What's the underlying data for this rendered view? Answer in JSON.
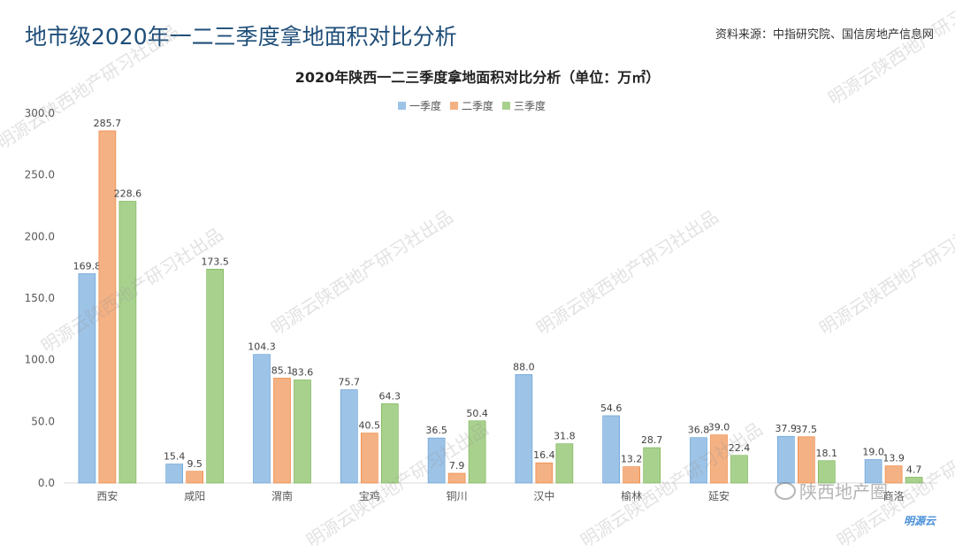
{
  "header": {
    "title": "地市级2020年一二三季度拿地面积对比分析",
    "source_label": "资料来源：",
    "source_part1": "中指研究院",
    "source_separator": "、",
    "source_part2": "国信房地产信息网"
  },
  "watermark_text": "明源云陕西地产研习社出品",
  "wechat_text": "陕西地产圈",
  "logo_text": "明源云",
  "colors": {
    "series1": "#9dc3e6",
    "series2": "#f4b183",
    "series3": "#a9d18e",
    "series1_stroke": "#5b9bd5",
    "series2_stroke": "#ed7d31",
    "series3_stroke": "#70ad47",
    "title_color": "#1f4e79"
  },
  "chart_data": {
    "type": "bar",
    "title": "2020年陕西一二三季度拿地面积对比分析（单位：万㎡）",
    "categories": [
      "西安",
      "咸阳",
      "渭南",
      "宝鸡",
      "铜川",
      "汉中",
      "榆林",
      "延安",
      "",
      "商洛"
    ],
    "series": [
      {
        "name": "一季度",
        "values": [
          169.8,
          15.4,
          104.3,
          75.7,
          36.5,
          88.0,
          54.6,
          36.8,
          37.9,
          19.0
        ],
        "value_labels": [
          "169.8",
          "15.4",
          "104.3",
          "75.7",
          "36.5",
          "88.0",
          "54.6",
          "36.8",
          "37.9",
          "19.0"
        ]
      },
      {
        "name": "二季度",
        "values": [
          285.7,
          9.5,
          85.1,
          40.5,
          7.9,
          16.4,
          13.2,
          39.0,
          37.5,
          13.9
        ],
        "value_labels": [
          "285.7",
          "9.5",
          "85.1",
          "40.5",
          "7.9",
          "16.4",
          "13.2",
          "39.0",
          "37.5",
          "13.9"
        ]
      },
      {
        "name": "三季度",
        "values": [
          228.6,
          173.5,
          83.6,
          64.3,
          50.4,
          31.8,
          28.7,
          22.4,
          18.1,
          4.7
        ],
        "value_labels": [
          "228.6",
          "173.5",
          "83.6",
          "64.3",
          "50.4",
          "31.8",
          "28.7",
          "22.4",
          "18.1",
          "4.7"
        ]
      }
    ],
    "yticks": [
      "0.0",
      "50.0",
      "100.0",
      "150.0",
      "200.0",
      "250.0",
      "300.0"
    ],
    "ylim": [
      0,
      300
    ],
    "grid": false,
    "legend_position": "top-center"
  }
}
